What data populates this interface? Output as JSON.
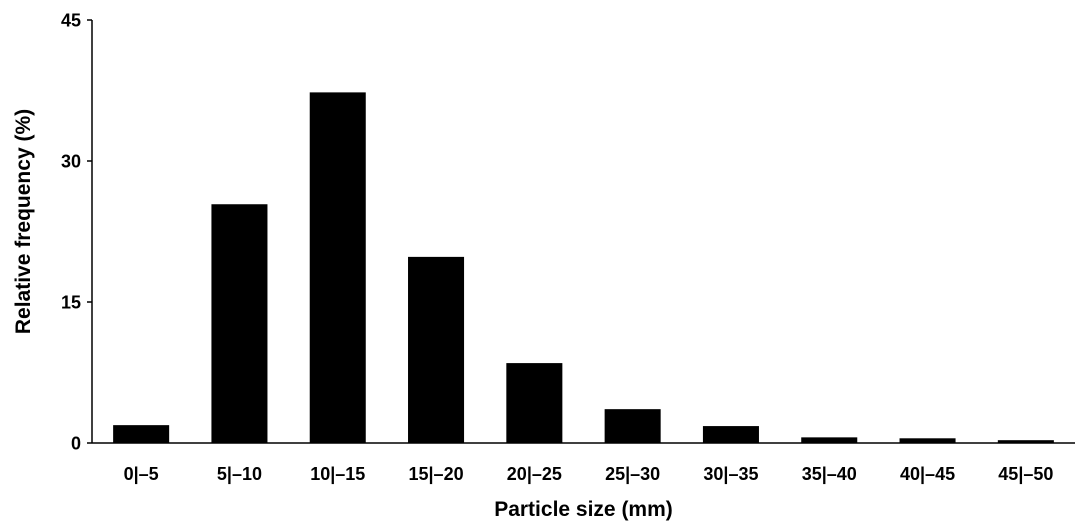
{
  "chart_data": {
    "type": "bar",
    "title": "",
    "xlabel": "Particle size (mm)",
    "ylabel": "Relative frequency (%)",
    "categories": [
      "0|–5",
      "5|–10",
      "10|–15",
      "15|–20",
      "20|–25",
      "25|–30",
      "30|–35",
      "35|–40",
      "40|–45",
      "45|–50"
    ],
    "values": [
      1.9,
      25.4,
      37.3,
      19.8,
      8.5,
      3.6,
      1.8,
      0.6,
      0.5,
      0.3
    ],
    "ylim": [
      0,
      45
    ],
    "yticks": [
      0,
      15,
      30,
      45
    ],
    "grid": false,
    "legend": "none",
    "bar_color": "#000000"
  }
}
